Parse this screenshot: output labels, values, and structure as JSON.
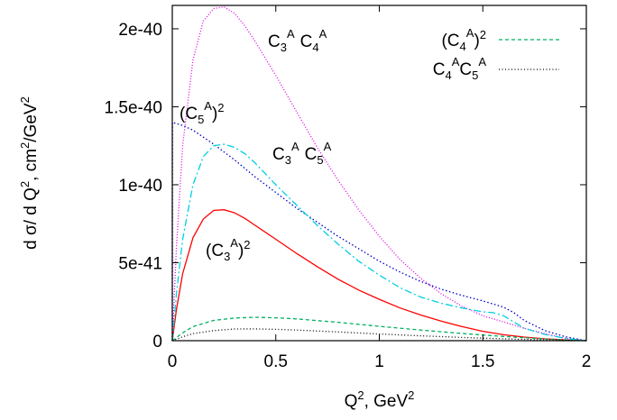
{
  "chart_data": {
    "type": "line",
    "xlabel": {
      "base": "Q",
      "sup": "2",
      "unit": ", GeV",
      "unit_sup": "2"
    },
    "ylabel": {
      "prefix": "d σ/ d Q",
      "sup1": "2",
      "mid": ", cm",
      "sup2": "2",
      "unit": "/GeV",
      "sup3": "2"
    },
    "xlim": [
      0,
      2
    ],
    "ylim": [
      0,
      2.15e-40
    ],
    "x_ticks": [
      {
        "value": 0,
        "label": "0"
      },
      {
        "value": 0.5,
        "label": "0.5"
      },
      {
        "value": 1,
        "label": "1"
      },
      {
        "value": 1.5,
        "label": "1.5"
      },
      {
        "value": 2,
        "label": "2"
      }
    ],
    "y_ticks": [
      {
        "value": 0,
        "label": "0"
      },
      {
        "value": 5e-41,
        "label": "5e-41"
      },
      {
        "value": 1e-40,
        "label": "1e-40"
      },
      {
        "value": 1.5e-40,
        "label": "1.5e-40"
      },
      {
        "value": 2e-40,
        "label": "2e-40"
      }
    ],
    "grid": false,
    "legend_position": "top-right",
    "legend": [
      {
        "label_main": "(C",
        "label_sub": "4",
        "label_sup": "A",
        "label_tail": ")",
        "label_tail_sup": "2",
        "series": 3
      },
      {
        "label_main": "C",
        "label_sub": "4",
        "label_sup": "A",
        "label_main2": "C",
        "label_sub2": "5",
        "label_sup2": "A",
        "series": 4
      }
    ],
    "annotations": [
      {
        "kind": "c3c4",
        "text": "C3^A C4^A"
      },
      {
        "kind": "c5sq",
        "text": "(C5^A)^2"
      },
      {
        "kind": "c3c5",
        "text": "C3^A C5^A"
      },
      {
        "kind": "c3sq",
        "text": "(C3^A)^2"
      }
    ],
    "series": [
      {
        "color": "#ff0000",
        "dash": "",
        "x": [
          0,
          0.02,
          0.05,
          0.1,
          0.15,
          0.2,
          0.25,
          0.3,
          0.35,
          0.4,
          0.5,
          0.6,
          0.7,
          0.8,
          0.9,
          1.0,
          1.1,
          1.2,
          1.3,
          1.4,
          1.5,
          1.6,
          1.7,
          1.8,
          1.9,
          2.0
        ],
        "y": [
          0,
          2e-41,
          4.3e-41,
          6.6e-41,
          7.8e-41,
          8.35e-41,
          8.4e-41,
          8.2e-41,
          7.85e-41,
          7.4e-41,
          6.5e-41,
          5.6e-41,
          4.75e-41,
          3.95e-41,
          3.25e-41,
          2.65e-41,
          2.1e-41,
          1.65e-41,
          1.25e-41,
          9e-42,
          6e-42,
          3.8e-42,
          2.3e-42,
          1.2e-42,
          5e-43,
          0
        ]
      },
      {
        "color": "#e000e0",
        "dash": "1 2",
        "x": [
          0,
          0.02,
          0.05,
          0.1,
          0.15,
          0.2,
          0.25,
          0.3,
          0.35,
          0.4,
          0.5,
          0.6,
          0.7,
          0.8,
          0.9,
          1.0,
          1.1,
          1.2,
          1.3,
          1.4,
          1.5,
          1.6,
          1.7,
          1.8,
          1.9,
          2.0
        ],
        "y": [
          0,
          6e-41,
          1.25e-40,
          1.8e-40,
          2.05e-40,
          2.13e-40,
          2.14e-40,
          2.1e-40,
          2.02e-40,
          1.92e-40,
          1.7e-40,
          1.47e-40,
          1.24e-40,
          1.03e-40,
          8.4e-41,
          6.7e-41,
          5.2e-41,
          4e-41,
          3e-41,
          2.2e-41,
          1.6e-41,
          1.2e-41,
          8e-42,
          4.5e-42,
          1.5e-42,
          0
        ]
      },
      {
        "color": "#0000c8",
        "dash": "1.5 2.5",
        "x": [
          0,
          0.001,
          0.05,
          0.1,
          0.2,
          0.3,
          0.4,
          0.5,
          0.6,
          0.7,
          0.8,
          0.9,
          1.0,
          1.1,
          1.2,
          1.3,
          1.4,
          1.5,
          1.55,
          1.6,
          1.65,
          1.7,
          1.8,
          1.9,
          2.0
        ],
        "y": [
          0,
          1.4e-40,
          1.38e-40,
          1.35e-40,
          1.26e-40,
          1.16e-40,
          1.05e-40,
          9.5e-41,
          8.5e-41,
          7.6e-41,
          6.7e-41,
          5.9e-41,
          5.1e-41,
          4.4e-41,
          3.8e-41,
          3.3e-41,
          2.9e-41,
          2.55e-41,
          2.35e-41,
          2.15e-41,
          1.8e-41,
          1.3e-41,
          6.5e-42,
          2.5e-42,
          0
        ]
      },
      {
        "color": "#00b060",
        "dash": "4 3",
        "x": [
          0,
          0.05,
          0.1,
          0.2,
          0.3,
          0.4,
          0.5,
          0.6,
          0.8,
          1.0,
          1.2,
          1.4,
          1.6,
          1.8,
          2.0
        ],
        "y": [
          0,
          5e-42,
          9e-42,
          1.3e-41,
          1.45e-41,
          1.5e-41,
          1.47e-41,
          1.4e-41,
          1.18e-41,
          9.2e-42,
          6.8e-42,
          4.6e-42,
          2.7e-42,
          1.1e-42,
          0
        ]
      },
      {
        "color": "#000000",
        "dash": "1 2.5",
        "x": [
          0,
          0.05,
          0.1,
          0.2,
          0.3,
          0.4,
          0.5,
          0.6,
          0.8,
          1.0,
          1.2,
          1.4,
          1.6,
          1.8,
          2.0
        ],
        "y": [
          0,
          2.5e-42,
          4.5e-42,
          6.5e-42,
          7.5e-42,
          7.6e-42,
          7.3e-42,
          6.8e-42,
          5.6e-42,
          4.3e-42,
          3.1e-42,
          2.1e-42,
          1.2e-42,
          5e-43,
          0
        ]
      },
      {
        "color": "#00d0e0",
        "dash": "8 3 2 3",
        "x": [
          0,
          0.02,
          0.05,
          0.1,
          0.15,
          0.2,
          0.25,
          0.3,
          0.35,
          0.4,
          0.5,
          0.6,
          0.7,
          0.8,
          0.9,
          1.0,
          1.1,
          1.2,
          1.3,
          1.4,
          1.5,
          1.55,
          1.6,
          1.65,
          1.7,
          1.8,
          1.9,
          2.0
        ],
        "y": [
          0,
          3e-41,
          6.5e-41,
          1e-40,
          1.18e-40,
          1.25e-40,
          1.26e-40,
          1.24e-40,
          1.2e-40,
          1.14e-40,
          1e-40,
          8.7e-41,
          7.4e-41,
          6.2e-41,
          5.1e-41,
          4.2e-41,
          3.4e-41,
          2.8e-41,
          2.4e-41,
          2.1e-41,
          1.85e-41,
          1.8e-41,
          1.6e-41,
          1.2e-41,
          8e-42,
          4e-42,
          1.5e-42,
          0
        ]
      }
    ]
  }
}
